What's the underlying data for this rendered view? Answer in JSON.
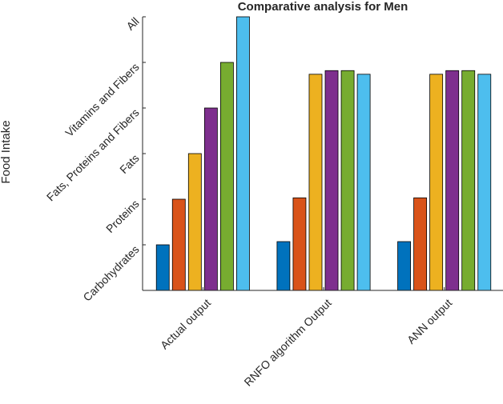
{
  "chart_data": {
    "type": "bar",
    "title": "Comparative analysis for Men",
    "y_label": "Food Intake",
    "categories": [
      "Actual output",
      "RNFO algorithm Output",
      "ANN output"
    ],
    "series": [
      {
        "color": "#0072BD",
        "values": [
          1,
          1.07,
          1.07
        ]
      },
      {
        "color": "#D95319",
        "values": [
          2,
          2.03,
          2.03
        ]
      },
      {
        "color": "#EDB120",
        "values": [
          3,
          4.74,
          4.74
        ]
      },
      {
        "color": "#7E2F8E",
        "values": [
          4,
          4.82,
          4.82
        ]
      },
      {
        "color": "#77AC30",
        "values": [
          5,
          4.82,
          4.82
        ]
      },
      {
        "color": "#4DBEEE",
        "values": [
          6,
          4.74,
          4.74
        ]
      }
    ],
    "ylim": [
      0,
      6
    ],
    "yticks": [
      {
        "value": 1,
        "label": "Carbohydrates"
      },
      {
        "value": 2,
        "label": "Proteins"
      },
      {
        "value": 3,
        "label": "Fats"
      },
      {
        "value": 4,
        "label": "Fats, Proteins and Fibers"
      },
      {
        "value": 5,
        "label": "Vitamins and Fibers"
      },
      {
        "value": 6,
        "label": "All"
      }
    ]
  }
}
